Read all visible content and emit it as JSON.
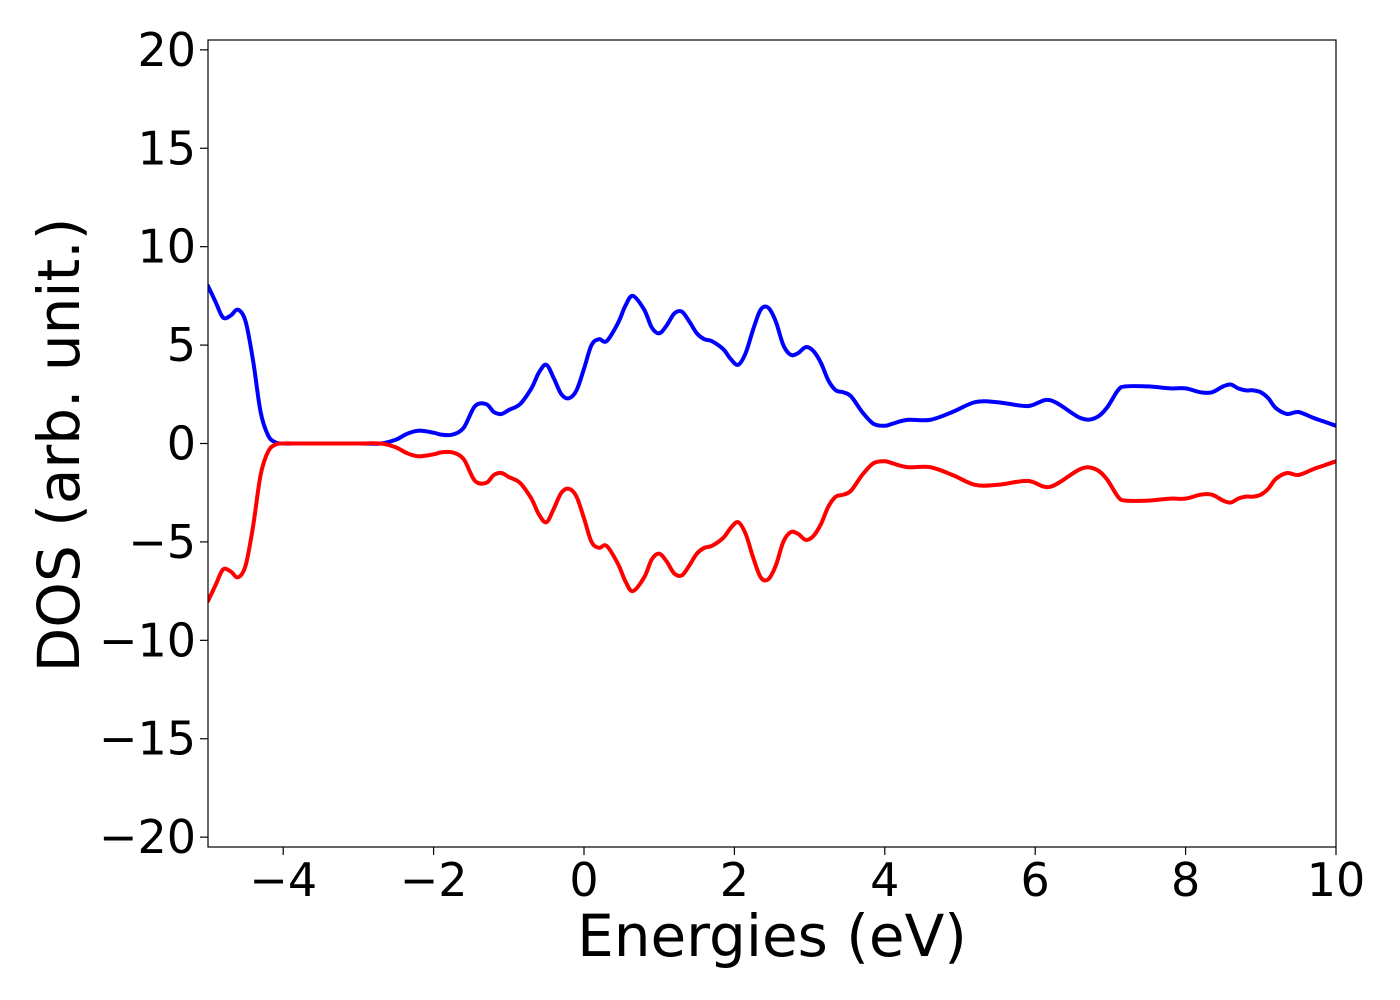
{
  "chart_data": {
    "type": "line",
    "title": "",
    "xlabel": "Energies (eV)",
    "ylabel": "DOS (arb. unit.)",
    "xlim": [
      -5,
      10
    ],
    "ylim": [
      -20.5,
      20.5
    ],
    "grid": false,
    "legend": "none",
    "x_ticks": [
      -4,
      -2,
      0,
      2,
      4,
      6,
      8,
      10
    ],
    "x_tick_labels": [
      "−4",
      "−2",
      "0",
      "2",
      "4",
      "6",
      "8",
      "10"
    ],
    "y_ticks": [
      -20,
      -15,
      -10,
      -5,
      0,
      5,
      10,
      15,
      20
    ],
    "y_tick_labels": [
      "−20",
      "−15",
      "−10",
      "−5",
      "0",
      "5",
      "10",
      "15",
      "20"
    ],
    "series": [
      {
        "color": "#0000ff",
        "x": [
          -5.0,
          -4.9,
          -4.8,
          -4.7,
          -4.6,
          -4.5,
          -4.4,
          -4.3,
          -4.2,
          -4.1,
          -4.0,
          -3.8,
          -3.5,
          -3.0,
          -2.7,
          -2.5,
          -2.35,
          -2.2,
          -2.0,
          -1.9,
          -1.75,
          -1.6,
          -1.45,
          -1.3,
          -1.2,
          -1.1,
          -1.0,
          -0.85,
          -0.7,
          -0.6,
          -0.5,
          -0.4,
          -0.3,
          -0.2,
          -0.1,
          0.0,
          0.1,
          0.2,
          0.3,
          0.45,
          0.55,
          0.65,
          0.8,
          0.9,
          1.0,
          1.1,
          1.2,
          1.3,
          1.4,
          1.5,
          1.6,
          1.7,
          1.85,
          1.95,
          2.05,
          2.15,
          2.25,
          2.35,
          2.45,
          2.55,
          2.65,
          2.75,
          2.85,
          2.95,
          3.05,
          3.15,
          3.25,
          3.35,
          3.45,
          3.55,
          3.7,
          3.85,
          4.0,
          4.1,
          4.3,
          4.6,
          4.9,
          5.2,
          5.5,
          5.9,
          6.2,
          6.6,
          6.8,
          6.95,
          7.1,
          7.2,
          7.5,
          7.8,
          8.0,
          8.2,
          8.35,
          8.5,
          8.6,
          8.7,
          8.8,
          8.9,
          9.0,
          9.1,
          9.2,
          9.35,
          9.5,
          9.7,
          9.85,
          10.0
        ],
        "y": [
          8.0,
          7.2,
          6.4,
          6.5,
          6.8,
          6.2,
          4.2,
          1.6,
          0.4,
          0.05,
          0.0,
          0.0,
          0.0,
          0.0,
          0.0,
          0.2,
          0.5,
          0.65,
          0.55,
          0.45,
          0.45,
          0.8,
          1.9,
          2.0,
          1.6,
          1.5,
          1.7,
          2.0,
          2.8,
          3.6,
          4.0,
          3.3,
          2.5,
          2.3,
          2.7,
          3.8,
          5.0,
          5.3,
          5.2,
          6.1,
          7.0,
          7.5,
          6.8,
          5.9,
          5.6,
          6.0,
          6.6,
          6.7,
          6.2,
          5.6,
          5.3,
          5.2,
          4.8,
          4.3,
          4.0,
          4.6,
          5.8,
          6.8,
          6.9,
          6.2,
          5.0,
          4.5,
          4.6,
          4.9,
          4.7,
          4.1,
          3.2,
          2.7,
          2.6,
          2.4,
          1.6,
          1.0,
          0.9,
          1.0,
          1.2,
          1.2,
          1.6,
          2.1,
          2.1,
          1.9,
          2.2,
          1.3,
          1.3,
          1.8,
          2.7,
          2.9,
          2.9,
          2.8,
          2.8,
          2.6,
          2.6,
          2.9,
          3.0,
          2.8,
          2.7,
          2.7,
          2.6,
          2.3,
          1.8,
          1.5,
          1.6,
          1.3,
          1.1,
          0.9
        ]
      },
      {
        "color": "#ff0000",
        "x": [
          -5.0,
          -4.9,
          -4.8,
          -4.7,
          -4.6,
          -4.5,
          -4.4,
          -4.3,
          -4.2,
          -4.1,
          -4.0,
          -3.8,
          -3.5,
          -3.0,
          -2.7,
          -2.5,
          -2.35,
          -2.2,
          -2.0,
          -1.9,
          -1.75,
          -1.6,
          -1.45,
          -1.3,
          -1.2,
          -1.1,
          -1.0,
          -0.85,
          -0.7,
          -0.6,
          -0.5,
          -0.4,
          -0.3,
          -0.2,
          -0.1,
          0.0,
          0.1,
          0.2,
          0.3,
          0.45,
          0.55,
          0.65,
          0.8,
          0.9,
          1.0,
          1.1,
          1.2,
          1.3,
          1.4,
          1.5,
          1.6,
          1.7,
          1.85,
          1.95,
          2.05,
          2.15,
          2.25,
          2.35,
          2.45,
          2.55,
          2.65,
          2.75,
          2.85,
          2.95,
          3.05,
          3.15,
          3.25,
          3.35,
          3.45,
          3.55,
          3.7,
          3.85,
          4.0,
          4.1,
          4.3,
          4.6,
          4.9,
          5.2,
          5.5,
          5.9,
          6.2,
          6.6,
          6.8,
          6.95,
          7.1,
          7.2,
          7.5,
          7.8,
          8.0,
          8.2,
          8.35,
          8.5,
          8.6,
          8.7,
          8.8,
          8.9,
          9.0,
          9.1,
          9.2,
          9.35,
          9.5,
          9.7,
          9.85,
          10.0
        ],
        "y": [
          -8.0,
          -7.2,
          -6.4,
          -6.5,
          -6.8,
          -6.2,
          -4.2,
          -1.6,
          -0.4,
          -0.05,
          0.0,
          0.0,
          0.0,
          0.0,
          0.0,
          -0.2,
          -0.5,
          -0.65,
          -0.55,
          -0.45,
          -0.45,
          -0.8,
          -1.9,
          -2.0,
          -1.6,
          -1.5,
          -1.7,
          -2.0,
          -2.8,
          -3.6,
          -4.0,
          -3.3,
          -2.5,
          -2.3,
          -2.7,
          -3.8,
          -5.0,
          -5.3,
          -5.2,
          -6.1,
          -7.0,
          -7.5,
          -6.8,
          -5.9,
          -5.6,
          -6.0,
          -6.6,
          -6.7,
          -6.2,
          -5.6,
          -5.3,
          -5.2,
          -4.8,
          -4.3,
          -4.0,
          -4.6,
          -5.8,
          -6.8,
          -6.9,
          -6.2,
          -5.0,
          -4.5,
          -4.6,
          -4.9,
          -4.7,
          -4.1,
          -3.2,
          -2.7,
          -2.6,
          -2.4,
          -1.6,
          -1.0,
          -0.9,
          -1.0,
          -1.2,
          -1.2,
          -1.6,
          -2.1,
          -2.1,
          -1.9,
          -2.2,
          -1.3,
          -1.3,
          -1.8,
          -2.7,
          -2.9,
          -2.9,
          -2.8,
          -2.8,
          -2.6,
          -2.6,
          -2.9,
          -3.0,
          -2.8,
          -2.7,
          -2.7,
          -2.6,
          -2.3,
          -1.8,
          -1.5,
          -1.6,
          -1.3,
          -1.1,
          -0.9
        ]
      }
    ]
  }
}
